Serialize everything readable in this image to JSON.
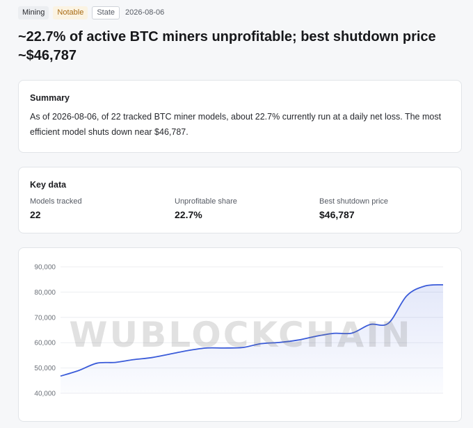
{
  "tags": {
    "mining": "Mining",
    "notable": "Notable",
    "state": "State",
    "date": "2026-08-06"
  },
  "headline": "~22.7% of active BTC miners unprofitable; best shutdown price ~$46,787",
  "summary": {
    "title": "Summary",
    "text": "As of 2026-08-06, of 22 tracked BTC miner models, about 22.7% currently run at a daily net loss. The most efficient model shuts down near $46,787."
  },
  "key_data": {
    "title": "Key data",
    "items": [
      {
        "label": "Models tracked",
        "value": "22"
      },
      {
        "label": "Unprofitable share",
        "value": "22.7%"
      },
      {
        "label": "Best shutdown price",
        "value": "$46,787"
      }
    ]
  },
  "watermark": "WUBLOCKCHAIN",
  "colors": {
    "line": "#3a5bd9",
    "fill": "#e9edfb",
    "grid": "#eceef1",
    "accent": "#a86a12"
  },
  "chart_data": {
    "type": "area",
    "title": "",
    "xlabel": "",
    "ylabel": "",
    "ylim": [
      40000,
      90000
    ],
    "yticks": [
      40000,
      50000,
      60000,
      70000,
      80000,
      90000
    ],
    "ytick_labels": [
      "40,000",
      "50,000",
      "60,000",
      "70,000",
      "80,000",
      "90,000"
    ],
    "grid": true,
    "legend": "none",
    "x": [
      1,
      2,
      3,
      4,
      5,
      6,
      7,
      8,
      9,
      10,
      11,
      12,
      13,
      14,
      15,
      16,
      17,
      18,
      19,
      20,
      21,
      22
    ],
    "series": [
      {
        "values": [
          46787,
          49000,
          51900,
          52200,
          53300,
          54100,
          55500,
          56900,
          57900,
          57900,
          58100,
          59600,
          60100,
          61000,
          62500,
          63700,
          63800,
          67200,
          67700,
          78500,
          82400,
          82900
        ]
      }
    ]
  }
}
